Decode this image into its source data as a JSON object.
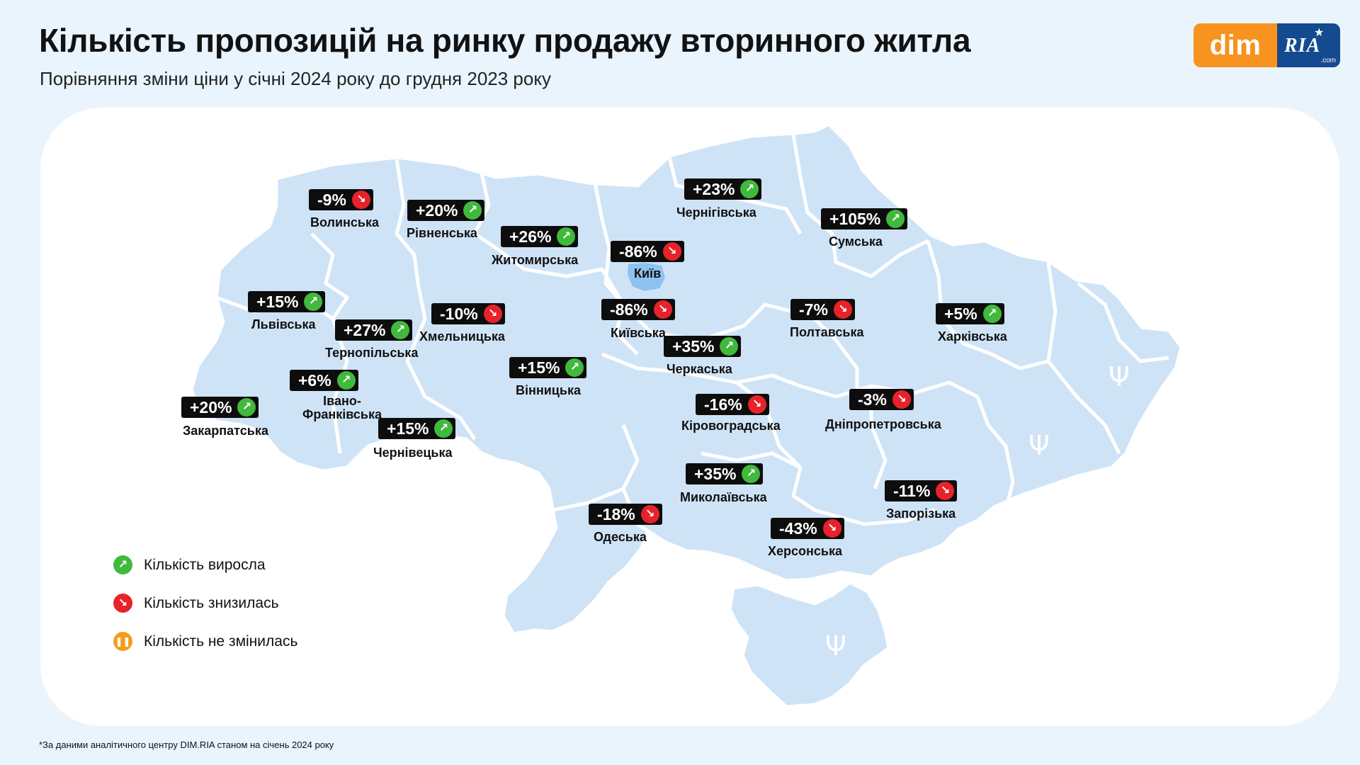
{
  "title": "Кількість пропозицій на ринку продажу вторинного житла",
  "subtitle": "Порівняння зміни ціни у січні 2024 року до грудня 2023 року",
  "logo": {
    "left": "dim",
    "right": "RIA",
    "domain": ".com"
  },
  "colors": {
    "up": "#40b93c",
    "down": "#e8222a",
    "same": "#f39c1c",
    "map_fill": "#cfe3f7",
    "background": "#eaf4fd"
  },
  "regions": [
    {
      "name": "Волинська",
      "value": "-9%",
      "trend": "down"
    },
    {
      "name": "Рівненська",
      "value": "+20%",
      "trend": "up"
    },
    {
      "name": "Житомирська",
      "value": "+26%",
      "trend": "up"
    },
    {
      "name": "Чернігівська",
      "value": "+23%",
      "trend": "up"
    },
    {
      "name": "Сумська",
      "value": "+105%",
      "trend": "up"
    },
    {
      "name": "Київ",
      "value": "-86%",
      "trend": "down"
    },
    {
      "name": "Київська",
      "value": "-86%",
      "trend": "down"
    },
    {
      "name": "Львівська",
      "value": "+15%",
      "trend": "up"
    },
    {
      "name": "Тернопільська",
      "value": "+27%",
      "trend": "up"
    },
    {
      "name": "Хмельницька",
      "value": "-10%",
      "trend": "down"
    },
    {
      "name": "Івано-Франківська",
      "value": "+6%",
      "trend": "up"
    },
    {
      "name": "Закарпатська",
      "value": "+20%",
      "trend": "up"
    },
    {
      "name": "Чернівецька",
      "value": "+15%",
      "trend": "up"
    },
    {
      "name": "Вінницька",
      "value": "+15%",
      "trend": "up"
    },
    {
      "name": "Черкаська",
      "value": "+35%",
      "trend": "up"
    },
    {
      "name": "Полтавська",
      "value": "-7%",
      "trend": "down"
    },
    {
      "name": "Харківська",
      "value": "+5%",
      "trend": "up"
    },
    {
      "name": "Кіровоградська",
      "value": "-16%",
      "trend": "down"
    },
    {
      "name": "Дніпропетровська",
      "value": "-3%",
      "trend": "down"
    },
    {
      "name": "Миколаївська",
      "value": "+35%",
      "trend": "up"
    },
    {
      "name": "Одеська",
      "value": "-18%",
      "trend": "down"
    },
    {
      "name": "Херсонська",
      "value": "-43%",
      "trend": "down"
    },
    {
      "name": "Запорізька",
      "value": "-11%",
      "trend": "down"
    }
  ],
  "legend": [
    {
      "label": "Кількість виросла",
      "icon": "arrow-up-right-icon",
      "trend": "up"
    },
    {
      "label": "Кількість знизилась",
      "icon": "arrow-down-right-icon",
      "trend": "down"
    },
    {
      "label": "Кількість не змінилась",
      "icon": "pause-icon",
      "trend": "same"
    }
  ],
  "footnote": "*За даними аналітичного центру DIM.RIA станом на січень 2024 року"
}
